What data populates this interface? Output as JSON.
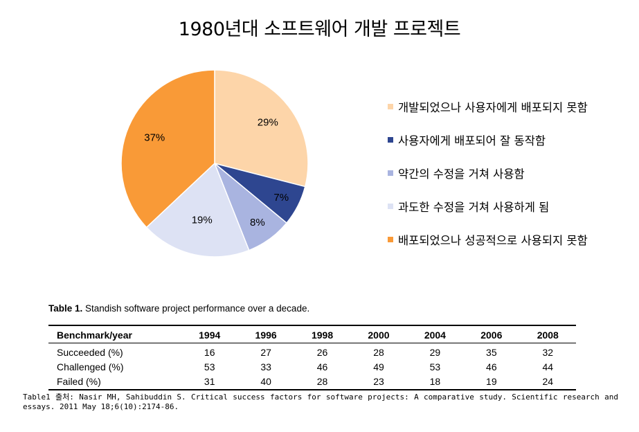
{
  "chart_data": {
    "type": "pie",
    "title": "1980년대 소프트웨어 개발 프로젝트",
    "categories": [
      "개발되었으나 사용자에게 배포되지 못함",
      "사용자에게 배포되어 잘 동작함",
      "약간의 수정을 거쳐 사용함",
      "과도한 수정을 거쳐 사용하게 됨",
      "배포되었으나 성공적으로 사용되지 못함"
    ],
    "values": [
      29,
      7,
      8,
      19,
      37
    ],
    "value_labels": [
      "29%",
      "7%",
      "8%",
      "19%",
      "37%"
    ],
    "colors": [
      "#fdd5a9",
      "#2e4690",
      "#a9b4e0",
      "#dde2f4",
      "#f99a37"
    ],
    "legend_position": "right"
  },
  "table": {
    "caption_bold": "Table 1.",
    "caption_text": " Standish software project performance over a decade.",
    "headers": [
      "Benchmark/year",
      "1994",
      "1996",
      "1998",
      "2000",
      "2004",
      "2006",
      "2008"
    ],
    "rows": [
      [
        "Succeeded (%)",
        "16",
        "27",
        "26",
        "28",
        "29",
        "35",
        "32"
      ],
      [
        "Challenged (%)",
        "53",
        "33",
        "46",
        "49",
        "53",
        "46",
        "44"
      ],
      [
        "Failed (%)",
        "31",
        "40",
        "28",
        "23",
        "18",
        "19",
        "24"
      ]
    ]
  },
  "source": "Table1 출처: Nasir MH, Sahibuddin S. Critical success factors for software projects: A comparative study. Scientific research and essays. 2011 May 18;6(10):2174-86."
}
